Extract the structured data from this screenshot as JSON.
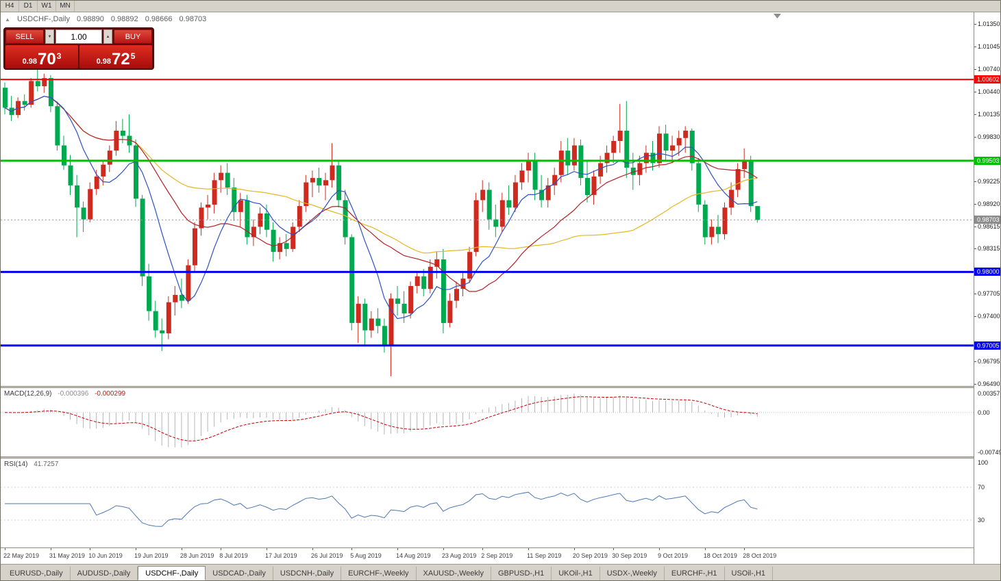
{
  "toolbar": {
    "periods": [
      "H4",
      "D1",
      "W1",
      "MN"
    ]
  },
  "chart": {
    "symbol_header": {
      "collapse_icon": "▲",
      "title": "USDCHF-,Daily",
      "open": "0.98890",
      "high": "0.98892",
      "low": "0.98666",
      "close": "0.98703"
    },
    "trade_panel": {
      "sell_label": "SELL",
      "buy_label": "BUY",
      "volume": "1.00",
      "spin_down_icon": "▼",
      "spin_up_icon": "▲",
      "sell_price": {
        "small": "0.98",
        "big": "70",
        "sup": "3"
      },
      "buy_price": {
        "small": "0.98",
        "big": "72",
        "sup": "5"
      }
    }
  },
  "macd": {
    "label": "MACD(12,26,9)",
    "value_main": "-0.000396",
    "value_signal": "-0.000299",
    "axis": [
      {
        "text": "0.003574",
        "value": 0.003574
      },
      {
        "text": "0.00",
        "value": 0
      },
      {
        "text": "-0.00749",
        "value": -0.00749
      }
    ]
  },
  "rsi": {
    "label": "RSI(14)",
    "value": "41.7257",
    "axis": [
      {
        "text": "100",
        "value": 100
      },
      {
        "text": "70",
        "value": 70
      },
      {
        "text": "30",
        "value": 30
      }
    ],
    "levels": [
      70,
      30
    ]
  },
  "tabs": {
    "active_index": 2,
    "items": [
      "EURUSD-,Daily",
      "AUDUSD-,Daily",
      "USDCHF-,Daily",
      "USDCAD-,Daily",
      "USDCNH-,Daily",
      "EURCHF-,Weekly",
      "XAUUSD-,Weekly",
      "GBPUSD-,H1",
      "UKOil-,H1",
      "USDX-,Weekly",
      "EURCHF-,H1",
      "USOil-,H1"
    ]
  },
  "chart_data": {
    "type": "candlestick",
    "title": "USDCHF-,Daily",
    "y_range": [
      0.9646,
      1.01509
    ],
    "colors": {
      "up": "#cf2a1f",
      "down": "#00a94f",
      "ma_fast": "#2c4fc4",
      "ma_mid": "#b42024",
      "ma_slow": "#e3b820",
      "macd_hist": "#b4b4b4",
      "macd_signal": "#c00000",
      "rsi_line": "#4a77b4",
      "current_line": "#9a9a9a"
    },
    "moving_averages": [
      {
        "period": 8,
        "colorKey": "ma_fast"
      },
      {
        "period": 21,
        "colorKey": "ma_mid"
      },
      {
        "period": 44,
        "colorKey": "ma_slow"
      }
    ],
    "horizontal_lines": [
      {
        "value": 1.00602,
        "label": "1.00602",
        "color": "#ff0000",
        "width": 2
      },
      {
        "value": 0.99503,
        "label": "0.99503",
        "color": "#00c000",
        "width": 3
      },
      {
        "value": 0.98,
        "label": "0.98000",
        "color": "#0000ee",
        "width": 3
      },
      {
        "value": 0.97005,
        "label": "0.97005",
        "color": "#0000ee",
        "width": 3
      }
    ],
    "current_price": {
      "value": 0.98703,
      "label": "0.98703",
      "box_color": "#8c8c8c"
    },
    "y_tick_labels": [
      {
        "text": "1.01350",
        "value": 1.0135
      },
      {
        "text": "1.01045",
        "value": 1.01045
      },
      {
        "text": "1.00740",
        "value": 1.0074
      },
      {
        "text": "1.00440",
        "value": 1.0044
      },
      {
        "text": "1.00135",
        "value": 1.00135
      },
      {
        "text": "0.99830",
        "value": 0.9983
      },
      {
        "text": "0.99225",
        "value": 0.99225
      },
      {
        "text": "0.98920",
        "value": 0.9892
      },
      {
        "text": "0.98615",
        "value": 0.98615
      },
      {
        "text": "0.98315",
        "value": 0.98315
      },
      {
        "text": "0.97705",
        "value": 0.97705
      },
      {
        "text": "0.97400",
        "value": 0.974
      },
      {
        "text": "0.96795",
        "value": 0.96795
      },
      {
        "text": "0.96490",
        "value": 0.9649
      }
    ],
    "x_tick_labels": [
      {
        "text": "22 May 2019",
        "i": 0
      },
      {
        "text": "31 May 2019",
        "i": 7
      },
      {
        "text": "10 Jun 2019",
        "i": 13
      },
      {
        "text": "19 Jun 2019",
        "i": 20
      },
      {
        "text": "28 Jun 2019",
        "i": 27
      },
      {
        "text": "8 Jul 2019",
        "i": 33
      },
      {
        "text": "17 Jul 2019",
        "i": 40
      },
      {
        "text": "26 Jul 2019",
        "i": 47
      },
      {
        "text": "5 Aug 2019",
        "i": 53
      },
      {
        "text": "14 Aug 2019",
        "i": 60
      },
      {
        "text": "23 Aug 2019",
        "i": 67
      },
      {
        "text": "2 Sep 2019",
        "i": 73
      },
      {
        "text": "11 Sep 2019",
        "i": 80
      },
      {
        "text": "20 Sep 2019",
        "i": 87
      },
      {
        "text": "30 Sep 2019",
        "i": 93
      },
      {
        "text": "9 Oct 2019",
        "i": 100
      },
      {
        "text": "18 Oct 2019",
        "i": 107
      },
      {
        "text": "28 Oct 2019",
        "i": 113
      }
    ],
    "ohlc": [
      [
        "2019-05-22",
        1.0049,
        1.0056,
        1.0013,
        1.0022
      ],
      [
        "2019-05-23",
        1.0022,
        1.0038,
        1.0004,
        1.0012
      ],
      [
        "2019-05-24",
        1.0012,
        1.0036,
        1.0008,
        1.0031
      ],
      [
        "2019-05-27",
        1.0031,
        1.004,
        1.0018,
        1.0026
      ],
      [
        "2019-05-28",
        1.0026,
        1.0062,
        1.0022,
        1.0058
      ],
      [
        "2019-05-29",
        1.0058,
        1.0074,
        1.0044,
        1.0051
      ],
      [
        "2019-05-30",
        1.0051,
        1.0068,
        1.0042,
        1.0062
      ],
      [
        "2019-05-31",
        1.0062,
        1.0066,
        1.0016,
        1.0024
      ],
      [
        "2019-06-03",
        1.0024,
        1.003,
        0.9964,
        0.9971
      ],
      [
        "2019-06-04",
        0.9971,
        0.9984,
        0.9938,
        0.9944
      ],
      [
        "2019-06-05",
        0.9944,
        0.9958,
        0.9904,
        0.9917
      ],
      [
        "2019-06-06",
        0.9917,
        0.9931,
        0.9847,
        0.9887
      ],
      [
        "2019-06-07",
        0.9887,
        0.9895,
        0.9854,
        0.9871
      ],
      [
        "2019-06-10",
        0.9871,
        0.9921,
        0.9867,
        0.9912
      ],
      [
        "2019-06-11",
        0.9912,
        0.9938,
        0.9904,
        0.9929
      ],
      [
        "2019-06-12",
        0.9929,
        0.9951,
        0.9917,
        0.9945
      ],
      [
        "2019-06-13",
        0.9945,
        0.9971,
        0.9935,
        0.9964
      ],
      [
        "2019-06-14",
        0.9964,
        1.0004,
        0.9957,
        0.9991
      ],
      [
        "2019-06-17",
        0.9991,
        1.0007,
        0.9974,
        0.9984
      ],
      [
        "2019-06-18",
        0.9984,
        1.0013,
        0.9961,
        0.9971
      ],
      [
        "2019-06-19",
        0.9971,
        0.9979,
        0.9888,
        0.9899
      ],
      [
        "2019-06-20",
        0.9899,
        0.9904,
        0.9781,
        0.9794
      ],
      [
        "2019-06-21",
        0.9794,
        0.9811,
        0.9734,
        0.9747
      ],
      [
        "2019-06-24",
        0.9747,
        0.9761,
        0.9711,
        0.9721
      ],
      [
        "2019-06-25",
        0.9721,
        0.9737,
        0.9693,
        0.9717
      ],
      [
        "2019-06-26",
        0.9717,
        0.9767,
        0.9709,
        0.9759
      ],
      [
        "2019-06-27",
        0.9759,
        0.9781,
        0.9741,
        0.9769
      ],
      [
        "2019-06-28",
        0.9769,
        0.9791,
        0.9751,
        0.9761
      ],
      [
        "2019-07-01",
        0.9761,
        0.9817,
        0.9757,
        0.9809
      ],
      [
        "2019-07-02",
        0.9809,
        0.9867,
        0.9801,
        0.9859
      ],
      [
        "2019-07-03",
        0.9859,
        0.9894,
        0.9849,
        0.9887
      ],
      [
        "2019-07-04",
        0.9887,
        0.9904,
        0.9871,
        0.9891
      ],
      [
        "2019-07-05",
        0.9891,
        0.9934,
        0.9879,
        0.9924
      ],
      [
        "2019-07-08",
        0.9924,
        0.9944,
        0.9907,
        0.9934
      ],
      [
        "2019-07-09",
        0.9934,
        0.9947,
        0.9904,
        0.9914
      ],
      [
        "2019-07-10",
        0.9914,
        0.9927,
        0.9869,
        0.9881
      ],
      [
        "2019-07-11",
        0.9881,
        0.9907,
        0.9861,
        0.9897
      ],
      [
        "2019-07-12",
        0.9897,
        0.9904,
        0.9837,
        0.9847
      ],
      [
        "2019-07-15",
        0.9847,
        0.9871,
        0.9835,
        0.9861
      ],
      [
        "2019-07-16",
        0.9861,
        0.9887,
        0.9851,
        0.9879
      ],
      [
        "2019-07-17",
        0.9879,
        0.9891,
        0.9847,
        0.9857
      ],
      [
        "2019-07-18",
        0.9857,
        0.9867,
        0.9814,
        0.9827
      ],
      [
        "2019-07-19",
        0.9827,
        0.9847,
        0.9817,
        0.9839
      ],
      [
        "2019-07-22",
        0.9839,
        0.9851,
        0.9821,
        0.9831
      ],
      [
        "2019-07-23",
        0.9831,
        0.9867,
        0.9827,
        0.9861
      ],
      [
        "2019-07-24",
        0.9861,
        0.9897,
        0.9854,
        0.9889
      ],
      [
        "2019-07-25",
        0.9889,
        0.9931,
        0.9881,
        0.9921
      ],
      [
        "2019-07-26",
        0.9921,
        0.9937,
        0.9901,
        0.9927
      ],
      [
        "2019-07-29",
        0.9927,
        0.9941,
        0.9907,
        0.9917
      ],
      [
        "2019-07-30",
        0.9917,
        0.9934,
        0.9897,
        0.9924
      ],
      [
        "2019-07-31",
        0.9924,
        0.9974,
        0.9914,
        0.9944
      ],
      [
        "2019-08-01",
        0.9944,
        0.9951,
        0.9887,
        0.9897
      ],
      [
        "2019-08-02",
        0.9897,
        0.9911,
        0.9837,
        0.9847
      ],
      [
        "2019-08-05",
        0.9847,
        0.9851,
        0.9721,
        0.9731
      ],
      [
        "2019-08-06",
        0.9731,
        0.9767,
        0.9704,
        0.9757
      ],
      [
        "2019-08-07",
        0.9757,
        0.9764,
        0.9701,
        0.9721
      ],
      [
        "2019-08-08",
        0.9721,
        0.9747,
        0.9711,
        0.9737
      ],
      [
        "2019-08-09",
        0.9737,
        0.9751,
        0.9717,
        0.9727
      ],
      [
        "2019-08-12",
        0.9727,
        0.9737,
        0.9691,
        0.9701
      ],
      [
        "2019-08-13",
        0.9701,
        0.9771,
        0.9659,
        0.9764
      ],
      [
        "2019-08-14",
        0.9764,
        0.9781,
        0.9741,
        0.9757
      ],
      [
        "2019-08-15",
        0.9757,
        0.9774,
        0.9731,
        0.9744
      ],
      [
        "2019-08-16",
        0.9744,
        0.9787,
        0.9737,
        0.9781
      ],
      [
        "2019-08-19",
        0.9781,
        0.9801,
        0.9771,
        0.9794
      ],
      [
        "2019-08-20",
        0.9794,
        0.9804,
        0.9767,
        0.9777
      ],
      [
        "2019-08-21",
        0.9777,
        0.9817,
        0.9771,
        0.9807
      ],
      [
        "2019-08-22",
        0.9807,
        0.9827,
        0.9791,
        0.9817
      ],
      [
        "2019-08-23",
        0.9817,
        0.9831,
        0.9717,
        0.9731
      ],
      [
        "2019-08-26",
        0.9731,
        0.9771,
        0.9725,
        0.9761
      ],
      [
        "2019-08-27",
        0.9761,
        0.9787,
        0.9751,
        0.9777
      ],
      [
        "2019-08-28",
        0.9777,
        0.9801,
        0.9767,
        0.9791
      ],
      [
        "2019-08-29",
        0.9791,
        0.9834,
        0.9785,
        0.9827
      ],
      [
        "2019-08-30",
        0.9827,
        0.9907,
        0.9821,
        0.9897
      ],
      [
        "2019-09-02",
        0.9897,
        0.9924,
        0.9881,
        0.9911
      ],
      [
        "2019-09-03",
        0.9911,
        0.9921,
        0.9857,
        0.9871
      ],
      [
        "2019-09-04",
        0.9871,
        0.9891,
        0.9847,
        0.9861
      ],
      [
        "2019-09-05",
        0.9861,
        0.9907,
        0.9854,
        0.9897
      ],
      [
        "2019-09-06",
        0.9897,
        0.9917,
        0.9877,
        0.9887
      ],
      [
        "2019-09-09",
        0.9887,
        0.9931,
        0.9881,
        0.9921
      ],
      [
        "2019-09-10",
        0.9921,
        0.9947,
        0.9911,
        0.9937
      ],
      [
        "2019-09-11",
        0.9937,
        0.9961,
        0.9921,
        0.9951
      ],
      [
        "2019-09-12",
        0.9951,
        0.9961,
        0.9897,
        0.9911
      ],
      [
        "2019-09-13",
        0.9911,
        0.9931,
        0.9887,
        0.9897
      ],
      [
        "2019-09-16",
        0.9897,
        0.9927,
        0.9887,
        0.9917
      ],
      [
        "2019-09-17",
        0.9917,
        0.9941,
        0.9904,
        0.9931
      ],
      [
        "2019-09-18",
        0.9931,
        0.9977,
        0.9921,
        0.9964
      ],
      [
        "2019-09-19",
        0.9964,
        0.9981,
        0.9931,
        0.9944
      ],
      [
        "2019-09-20",
        0.9944,
        0.9981,
        0.9937,
        0.9971
      ],
      [
        "2019-09-23",
        0.9971,
        0.9979,
        0.9917,
        0.9927
      ],
      [
        "2019-09-24",
        0.9927,
        0.9951,
        0.9894,
        0.9904
      ],
      [
        "2019-09-25",
        0.9904,
        0.9937,
        0.9891,
        0.9929
      ],
      [
        "2019-09-26",
        0.9929,
        0.9957,
        0.9919,
        0.9947
      ],
      [
        "2019-09-27",
        0.9947,
        0.9971,
        0.9934,
        0.9961
      ],
      [
        "2019-09-30",
        0.9961,
        0.9984,
        0.9947,
        0.9977
      ],
      [
        "2019-10-01",
        0.9977,
        1.0027,
        0.9961,
        0.9991
      ],
      [
        "2019-10-02",
        0.9991,
        1.0031,
        0.9927,
        0.9941
      ],
      [
        "2019-10-03",
        0.9941,
        0.9961,
        0.9911,
        0.9931
      ],
      [
        "2019-10-04",
        0.9931,
        0.9957,
        0.9917,
        0.9947
      ],
      [
        "2019-10-07",
        0.9947,
        0.9971,
        0.9934,
        0.9961
      ],
      [
        "2019-10-08",
        0.9961,
        0.9977,
        0.9937,
        0.9947
      ],
      [
        "2019-10-09",
        0.9947,
        0.9997,
        0.9941,
        0.9987
      ],
      [
        "2019-10-10",
        0.9987,
        0.9999,
        0.9951,
        0.9964
      ],
      [
        "2019-10-11",
        0.9964,
        0.9984,
        0.9947,
        0.9971
      ],
      [
        "2019-10-14",
        0.9971,
        0.9991,
        0.9957,
        0.9981
      ],
      [
        "2019-10-15",
        0.9981,
        0.9997,
        0.9961,
        0.9991
      ],
      [
        "2019-10-16",
        0.9991,
        0.9994,
        0.9937,
        0.9947
      ],
      [
        "2019-10-17",
        0.9947,
        0.9954,
        0.9881,
        0.9891
      ],
      [
        "2019-10-18",
        0.9891,
        0.9897,
        0.9837,
        0.9847
      ],
      [
        "2019-10-21",
        0.9847,
        0.9871,
        0.9837,
        0.9861
      ],
      [
        "2019-10-22",
        0.9861,
        0.9877,
        0.9839,
        0.9851
      ],
      [
        "2019-10-23",
        0.9851,
        0.9894,
        0.9844,
        0.9887
      ],
      [
        "2019-10-24",
        0.9887,
        0.9921,
        0.9877,
        0.9911
      ],
      [
        "2019-10-25",
        0.9911,
        0.9947,
        0.9901,
        0.9939
      ],
      [
        "2019-10-28",
        0.9939,
        0.9967,
        0.9927,
        0.9951
      ],
      [
        "2019-10-29",
        0.9951,
        0.9957,
        0.9881,
        0.9889
      ],
      [
        "2019-10-30",
        0.9889,
        0.98892,
        0.98666,
        0.98703
      ]
    ],
    "macd_axis_range": [
      -0.00749,
      0.003574
    ],
    "rsi_axis_range": [
      0,
      100
    ]
  }
}
